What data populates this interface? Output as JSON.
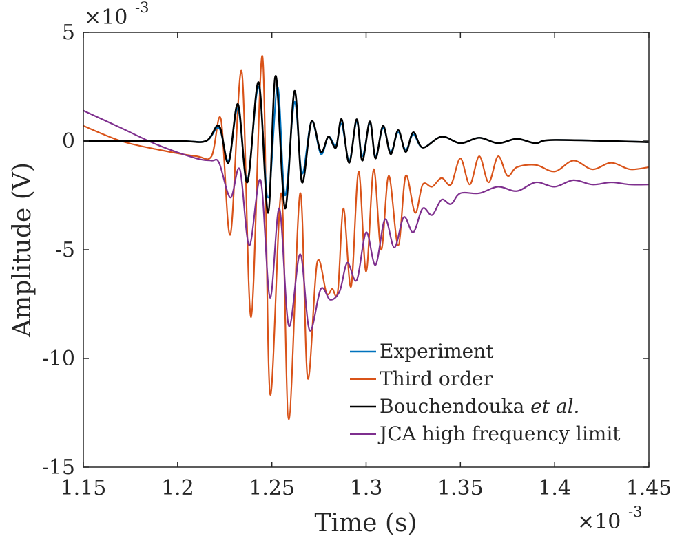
{
  "chart_data": {
    "type": "line",
    "xlabel": "Time (s)",
    "ylabel": "Amplitude (V)",
    "x_exponent_label": "×10",
    "x_exponent_power": "-3",
    "y_exponent_label": "×10",
    "y_exponent_power": "-3",
    "xlim": [
      1.15,
      1.45
    ],
    "ylim": [
      -15,
      5
    ],
    "x_ticks": [
      1.15,
      1.2,
      1.25,
      1.3,
      1.35,
      1.4,
      1.45
    ],
    "x_tick_labels": [
      "1.15",
      "1.2",
      "1.25",
      "1.3",
      "1.35",
      "1.4",
      "1.45"
    ],
    "y_ticks": [
      5,
      0,
      -5,
      -10,
      -15
    ],
    "y_tick_labels": [
      "5",
      "0",
      "-5",
      "-10",
      "-15"
    ],
    "legend_position": "bottom-right",
    "grid": false,
    "series": [
      {
        "name": "Experiment",
        "color": "#0072BD",
        "x": [
          1.15,
          1.2,
          1.215,
          1.222,
          1.227,
          1.232,
          1.237,
          1.243,
          1.248,
          1.253,
          1.257,
          1.262,
          1.266,
          1.271,
          1.276,
          1.28,
          1.284,
          1.287,
          1.291,
          1.295,
          1.298,
          1.302,
          1.305,
          1.309,
          1.313,
          1.317,
          1.321,
          1.325,
          1.33,
          1.34,
          1.35,
          1.36,
          1.37,
          1.38,
          1.39,
          1.4,
          1.45
        ],
        "y": [
          0.0,
          0.0,
          0.0,
          0.6,
          -0.9,
          1.5,
          -1.8,
          2.5,
          -2.6,
          2.5,
          -2.5,
          1.8,
          -1.5,
          0.9,
          -0.6,
          0.2,
          -0.2,
          0.8,
          -0.9,
          0.9,
          -0.7,
          0.8,
          -0.7,
          0.6,
          -0.5,
          0.4,
          -0.4,
          0.3,
          -0.3,
          0.2,
          -0.1,
          0.15,
          -0.1,
          0.1,
          -0.1,
          0.05,
          -0.05
        ]
      },
      {
        "name": "Third order",
        "color": "#D95319",
        "x": [
          1.15,
          1.17,
          1.19,
          1.21,
          1.218,
          1.223,
          1.228,
          1.234,
          1.239,
          1.245,
          1.249,
          1.255,
          1.259,
          1.265,
          1.269,
          1.274,
          1.279,
          1.282,
          1.285,
          1.288,
          1.292,
          1.296,
          1.3,
          1.304,
          1.308,
          1.312,
          1.317,
          1.321,
          1.326,
          1.33,
          1.335,
          1.34,
          1.345,
          1.35,
          1.355,
          1.36,
          1.365,
          1.37,
          1.375,
          1.38,
          1.39,
          1.4,
          1.41,
          1.42,
          1.43,
          1.44,
          1.45
        ],
        "y": [
          0.7,
          0.0,
          -0.4,
          -0.7,
          -0.7,
          1.0,
          -4.3,
          3.2,
          -8.1,
          3.9,
          -11.6,
          -2.4,
          -12.8,
          -2.4,
          -10.9,
          -5.6,
          -7.0,
          -6.8,
          -6.9,
          -3.1,
          -6.7,
          -1.4,
          -6.0,
          -1.3,
          -5.0,
          -1.6,
          -4.8,
          -1.6,
          -3.3,
          -2.0,
          -2.1,
          -1.7,
          -2.0,
          -0.8,
          -2.0,
          -0.7,
          -1.9,
          -0.7,
          -1.6,
          -1.2,
          -1.1,
          -1.4,
          -0.9,
          -1.3,
          -1.0,
          -1.3,
          -1.2
        ]
      },
      {
        "name": "Bouchendouka et al.",
        "color": "#000000",
        "x": [
          1.15,
          1.2,
          1.215,
          1.222,
          1.227,
          1.232,
          1.237,
          1.243,
          1.248,
          1.252,
          1.257,
          1.262,
          1.266,
          1.271,
          1.276,
          1.28,
          1.284,
          1.287,
          1.291,
          1.295,
          1.298,
          1.302,
          1.305,
          1.309,
          1.313,
          1.317,
          1.321,
          1.325,
          1.33,
          1.34,
          1.35,
          1.36,
          1.37,
          1.38,
          1.39,
          1.4,
          1.45
        ],
        "y": [
          0.0,
          0.0,
          0.0,
          0.7,
          -1.0,
          1.7,
          -1.9,
          2.7,
          -3.3,
          3.0,
          -3.1,
          2.3,
          -1.9,
          0.9,
          -0.5,
          0.2,
          -0.3,
          1.0,
          -1.0,
          1.0,
          -0.9,
          0.9,
          -0.8,
          0.7,
          -0.6,
          0.5,
          -0.5,
          0.4,
          -0.3,
          0.2,
          -0.1,
          0.15,
          -0.1,
          0.1,
          -0.1,
          0.05,
          -0.05
        ]
      },
      {
        "name": "JCA high frequency limit",
        "color": "#7E2F8E",
        "x": [
          1.15,
          1.17,
          1.19,
          1.21,
          1.218,
          1.222,
          1.228,
          1.233,
          1.238,
          1.244,
          1.249,
          1.254,
          1.259,
          1.265,
          1.27,
          1.276,
          1.281,
          1.286,
          1.29,
          1.295,
          1.3,
          1.305,
          1.31,
          1.315,
          1.32,
          1.325,
          1.33,
          1.335,
          1.34,
          1.345,
          1.35,
          1.36,
          1.37,
          1.38,
          1.39,
          1.4,
          1.41,
          1.42,
          1.43,
          1.44,
          1.45
        ],
        "y": [
          1.4,
          0.6,
          -0.2,
          -0.8,
          -0.9,
          -1.0,
          -2.6,
          -1.3,
          -4.8,
          -1.8,
          -7.2,
          -3.1,
          -8.5,
          -5.2,
          -8.7,
          -6.8,
          -7.3,
          -6.9,
          -5.6,
          -6.4,
          -4.2,
          -5.7,
          -3.6,
          -4.9,
          -3.5,
          -4.2,
          -3.1,
          -3.4,
          -2.7,
          -2.9,
          -2.4,
          -2.4,
          -2.1,
          -2.3,
          -1.9,
          -2.1,
          -1.8,
          -2.0,
          -1.9,
          -2.0,
          -2.0
        ]
      }
    ]
  }
}
